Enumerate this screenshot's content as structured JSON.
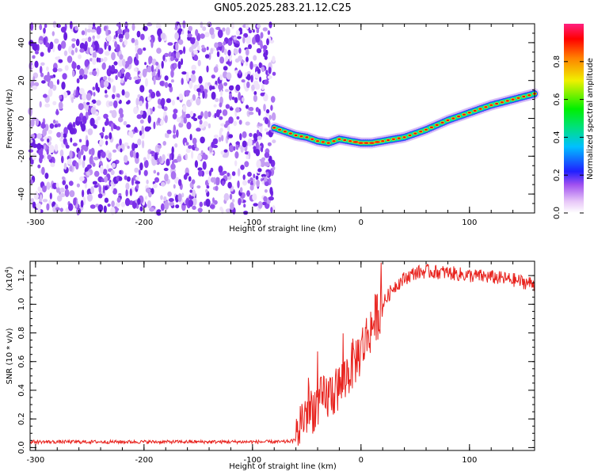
{
  "title": "GN05.2025.283.21.12.C25",
  "chart_data": [
    {
      "type": "heatmap",
      "xlabel": "Height of straight line (km)",
      "ylabel": "Frequency (Hz)",
      "xlim": [
        -305,
        160
      ],
      "ylim": [
        -50,
        50
      ],
      "xticks": [
        -300,
        -200,
        -100,
        0,
        100
      ],
      "yticks": [
        -40,
        -20,
        0,
        20,
        40
      ],
      "noise_region_x": [
        -305,
        -80
      ],
      "ridge": {
        "x": [
          -80,
          -70,
          -60,
          -50,
          -40,
          -30,
          -20,
          -10,
          0,
          10,
          20,
          40,
          60,
          80,
          100,
          120,
          140,
          160
        ],
        "y": [
          -5,
          -7,
          -9,
          -10,
          -12,
          -13,
          -11,
          -12,
          -13,
          -13,
          -12,
          -10,
          -6,
          -1,
          3,
          7,
          10,
          13
        ]
      },
      "colorbar": {
        "label": "Normalized spectral amplitude",
        "ticks": [
          0.0,
          0.2,
          0.4,
          0.6,
          0.8
        ],
        "range": [
          0,
          1
        ]
      }
    },
    {
      "type": "line",
      "xlabel": "Height of straight line (km)",
      "ylabel": "SNR (10 * v/v)",
      "yscale_label": "(x10",
      "yscale_exp": "4",
      "xlim": [
        -305,
        160
      ],
      "ylim": [
        -0.02,
        1.3
      ],
      "xticks": [
        -300,
        -200,
        -100,
        0,
        100
      ],
      "yticks": [
        0.0,
        0.2,
        0.4,
        0.6,
        0.8,
        1.0,
        1.2
      ],
      "series": [
        {
          "name": "SNR",
          "color": "#e8231e",
          "x": [
            -305,
            -250,
            -200,
            -150,
            -100,
            -70,
            -60,
            -55,
            -50,
            -40,
            -30,
            -20,
            -10,
            0,
            10,
            20,
            30,
            40,
            50,
            60,
            80,
            100,
            120,
            140,
            160
          ],
          "y": [
            0.04,
            0.04,
            0.04,
            0.04,
            0.04,
            0.04,
            0.05,
            0.2,
            0.25,
            0.3,
            0.36,
            0.42,
            0.55,
            0.68,
            0.85,
            1.0,
            1.12,
            1.18,
            1.22,
            1.23,
            1.22,
            1.2,
            1.19,
            1.17,
            1.14
          ]
        }
      ]
    }
  ],
  "colors": {
    "line": "#e8231e",
    "noise": "#8a3ff2",
    "frame": "#000000"
  }
}
